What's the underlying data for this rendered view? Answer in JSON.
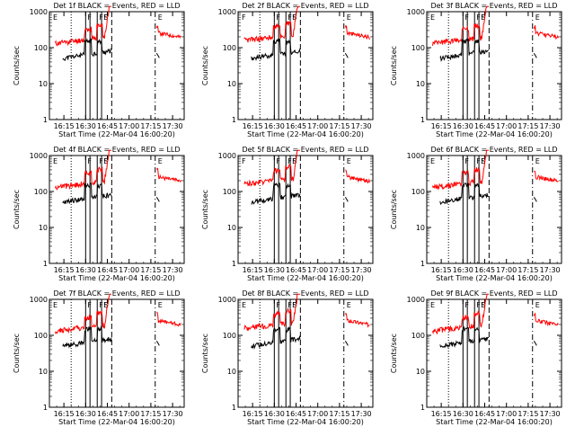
{
  "chart_data": [
    {
      "type": "line",
      "title": "Det 1f BLACK = Events, RED = LLD",
      "ylabel": "Counts/sec",
      "xlabel": "Start Time (22-Mar-04 16:00:20)",
      "yscale": "log",
      "ylim": [
        1,
        1000
      ],
      "yticks": [
        "1000",
        "100",
        "10",
        "1"
      ],
      "xlim": [
        "16:05",
        "17:38"
      ],
      "xticks": [
        "16:15",
        "16:30",
        "16:45",
        "17:00",
        "17:15",
        "17:30"
      ],
      "flags": [
        "E",
        "F",
        "F",
        "F",
        "S",
        "E"
      ],
      "series": [
        {
          "name": "Events",
          "color": "#000000"
        },
        {
          "name": "LLD",
          "color": "#ff0000"
        }
      ]
    },
    {
      "type": "line",
      "title": "Det 2f BLACK = Events, RED = LLD",
      "ylabel": "Counts/sec",
      "xlabel": "Start Time (22-Mar-04 16:00:20)",
      "yscale": "log",
      "ylim": [
        1,
        1000
      ],
      "yticks": [
        "1000",
        "100",
        "10",
        "1"
      ],
      "xlim": [
        "16:05",
        "17:38"
      ],
      "xticks": [
        "16:15",
        "16:30",
        "16:45",
        "17:00",
        "17:15",
        "17:30"
      ],
      "flags": [
        "F",
        "F",
        "F",
        "F",
        "S",
        "E"
      ],
      "series": [
        {
          "name": "Events",
          "color": "#000000"
        },
        {
          "name": "LLD",
          "color": "#ff0000"
        }
      ]
    },
    {
      "type": "line",
      "title": "Det 3f BLACK = Events, RED = LLD",
      "ylabel": "Counts/sec",
      "xlabel": "Start Time (22-Mar-04 16:00:20)",
      "yscale": "log",
      "ylim": [
        1,
        1000
      ],
      "yticks": [
        "1000",
        "100",
        "10",
        "1"
      ],
      "xlim": [
        "16:05",
        "17:38"
      ],
      "xticks": [
        "16:15",
        "16:30",
        "16:45",
        "17:00",
        "17:15",
        "17:30"
      ],
      "flags": [
        "E",
        "F",
        "F",
        "F",
        "S",
        "E"
      ],
      "series": [
        {
          "name": "Events",
          "color": "#000000"
        },
        {
          "name": "LLD",
          "color": "#ff0000"
        }
      ]
    },
    {
      "type": "line",
      "title": "Det 4f BLACK = Events, RED = LLD",
      "ylabel": "Counts/sec",
      "xlabel": "Start Time (22-Mar-04 16:00:20)",
      "yscale": "log",
      "ylim": [
        1,
        1000
      ],
      "yticks": [
        "1000",
        "100",
        "10",
        "1"
      ],
      "xlim": [
        "16:05",
        "17:38"
      ],
      "xticks": [
        "16:15",
        "16:30",
        "16:45",
        "17:00",
        "17:15",
        "17:30"
      ],
      "flags": [
        "E",
        "F",
        "F",
        "F",
        "S",
        "E"
      ],
      "series": [
        {
          "name": "Events",
          "color": "#000000"
        },
        {
          "name": "LLD",
          "color": "#ff0000"
        }
      ]
    },
    {
      "type": "line",
      "title": "Det 5f BLACK = Events, RED = LLD",
      "ylabel": "Counts/sec",
      "xlabel": "Start Time (22-Mar-04 16:00:20)",
      "yscale": "log",
      "ylim": [
        1,
        1000
      ],
      "yticks": [
        "1000",
        "100",
        "10",
        "1"
      ],
      "xlim": [
        "16:05",
        "17:38"
      ],
      "xticks": [
        "16:15",
        "16:30",
        "16:45",
        "17:00",
        "17:15",
        "17:30"
      ],
      "flags": [
        "F",
        "F",
        "F",
        "F",
        "S",
        "E"
      ],
      "series": [
        {
          "name": "Events",
          "color": "#000000"
        },
        {
          "name": "LLD",
          "color": "#ff0000"
        }
      ]
    },
    {
      "type": "line",
      "title": "Det 6f BLACK = Events, RED = LLD",
      "ylabel": "Counts/sec",
      "xlabel": "Start Time (22-Mar-04 16:00:20)",
      "yscale": "log",
      "ylim": [
        1,
        1000
      ],
      "yticks": [
        "1000",
        "100",
        "10",
        "1"
      ],
      "xlim": [
        "16:05",
        "17:38"
      ],
      "xticks": [
        "16:15",
        "16:30",
        "16:45",
        "17:00",
        "17:15",
        "17:30"
      ],
      "flags": [
        "E",
        "F",
        "F",
        "F",
        "S",
        "E"
      ],
      "series": [
        {
          "name": "Events",
          "color": "#000000"
        },
        {
          "name": "LLD",
          "color": "#ff0000"
        }
      ]
    },
    {
      "type": "line",
      "title": "Det 7f BLACK = Events, RED = LLD",
      "ylabel": "Counts/sec",
      "xlabel": "Start Time (22-Mar-04 16:00:20)",
      "yscale": "log",
      "ylim": [
        1,
        1000
      ],
      "yticks": [
        "1000",
        "100",
        "10",
        "1"
      ],
      "xlim": [
        "16:05",
        "17:38"
      ],
      "xticks": [
        "16:15",
        "16:30",
        "16:45",
        "17:00",
        "17:15",
        "17:30"
      ],
      "flags": [
        "E",
        "F",
        "F",
        "F",
        "S",
        "E"
      ],
      "series": [
        {
          "name": "Events",
          "color": "#000000"
        },
        {
          "name": "LLD",
          "color": "#ff0000"
        }
      ]
    },
    {
      "type": "line",
      "title": "Det 8f BLACK = Events, RED = LLD",
      "ylabel": "Counts/sec",
      "xlabel": "Start Time (22-Mar-04 16:00:20)",
      "yscale": "log",
      "ylim": [
        1,
        1000
      ],
      "yticks": [
        "1000",
        "100",
        "10",
        "1"
      ],
      "xlim": [
        "16:05",
        "17:38"
      ],
      "xticks": [
        "16:15",
        "16:30",
        "16:45",
        "17:00",
        "17:15",
        "17:30"
      ],
      "flags": [
        "E",
        "F",
        "F",
        "F",
        "S",
        "E"
      ],
      "series": [
        {
          "name": "Events",
          "color": "#000000"
        },
        {
          "name": "LLD",
          "color": "#ff0000"
        }
      ]
    },
    {
      "type": "line",
      "title": "Det 9f BLACK = Events, RED = LLD",
      "ylabel": "Counts/sec",
      "xlabel": "Start Time (22-Mar-04 16:00:20)",
      "yscale": "log",
      "ylim": [
        1,
        1000
      ],
      "yticks": [
        "1000",
        "100",
        "10",
        "1"
      ],
      "xlim": [
        "16:05",
        "17:38"
      ],
      "xticks": [
        "16:15",
        "16:30",
        "16:45",
        "17:00",
        "17:15",
        "17:30"
      ],
      "flags": [
        "E",
        "F",
        "F",
        "F",
        "S",
        "E"
      ],
      "series": [
        {
          "name": "Events",
          "color": "#000000"
        },
        {
          "name": "LLD",
          "color": "#ff0000"
        }
      ]
    }
  ]
}
